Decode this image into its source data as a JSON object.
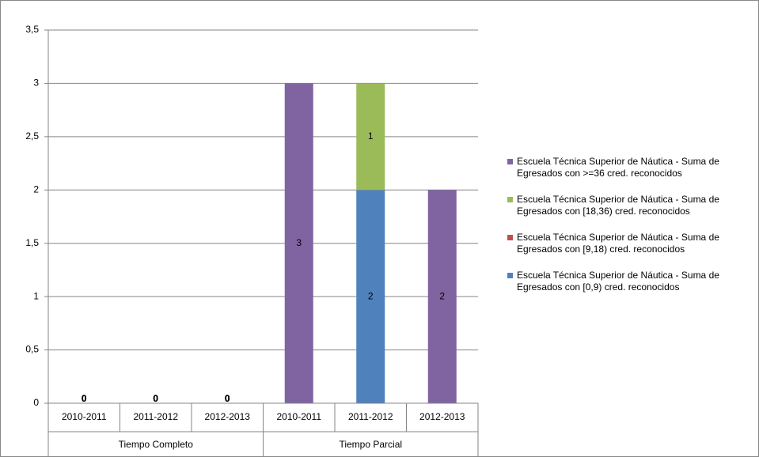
{
  "chart_data": {
    "type": "stacked_bar",
    "categories": [
      "2010-2011",
      "2011-2012",
      "2012-2013",
      "2010-2011",
      "2011-2012",
      "2012-2013"
    ],
    "groups": [
      "Tiempo Completo",
      "Tiempo Parcial"
    ],
    "series": [
      {
        "name": "Escuela Técnica Superior de Náutica - Suma de Egresados con [0,9) cred. reconocidos",
        "color": "#4f81bd",
        "values": [
          0,
          0,
          0,
          null,
          2,
          null
        ]
      },
      {
        "name": "Escuela Técnica Superior de Náutica - Suma de Egresados con [9,18) cred. reconocidos",
        "color": "#c0504d",
        "values": [
          0,
          0,
          0,
          null,
          null,
          null
        ]
      },
      {
        "name": "Escuela Técnica Superior de Náutica - Suma de Egresados con [18,36) cred. reconocidos",
        "color": "#9bbb59",
        "values": [
          0,
          0,
          0,
          null,
          1,
          null
        ]
      },
      {
        "name": "Escuela Técnica Superior de Náutica - Suma de Egresados con >=36 cred. reconocidos",
        "color": "#8064a2",
        "values": [
          0,
          0,
          0,
          3,
          null,
          2
        ]
      }
    ],
    "ylim": [
      0,
      3.5
    ],
    "yticks": [
      0,
      {
        "value": 0.5,
        "label": "0,5"
      },
      1,
      {
        "value": 1.5,
        "label": "1,5"
      },
      2,
      {
        "value": 2.5,
        "label": "2,5"
      },
      3,
      {
        "value": 3.5,
        "label": "3,5"
      }
    ],
    "grid": true,
    "legend": "right"
  }
}
